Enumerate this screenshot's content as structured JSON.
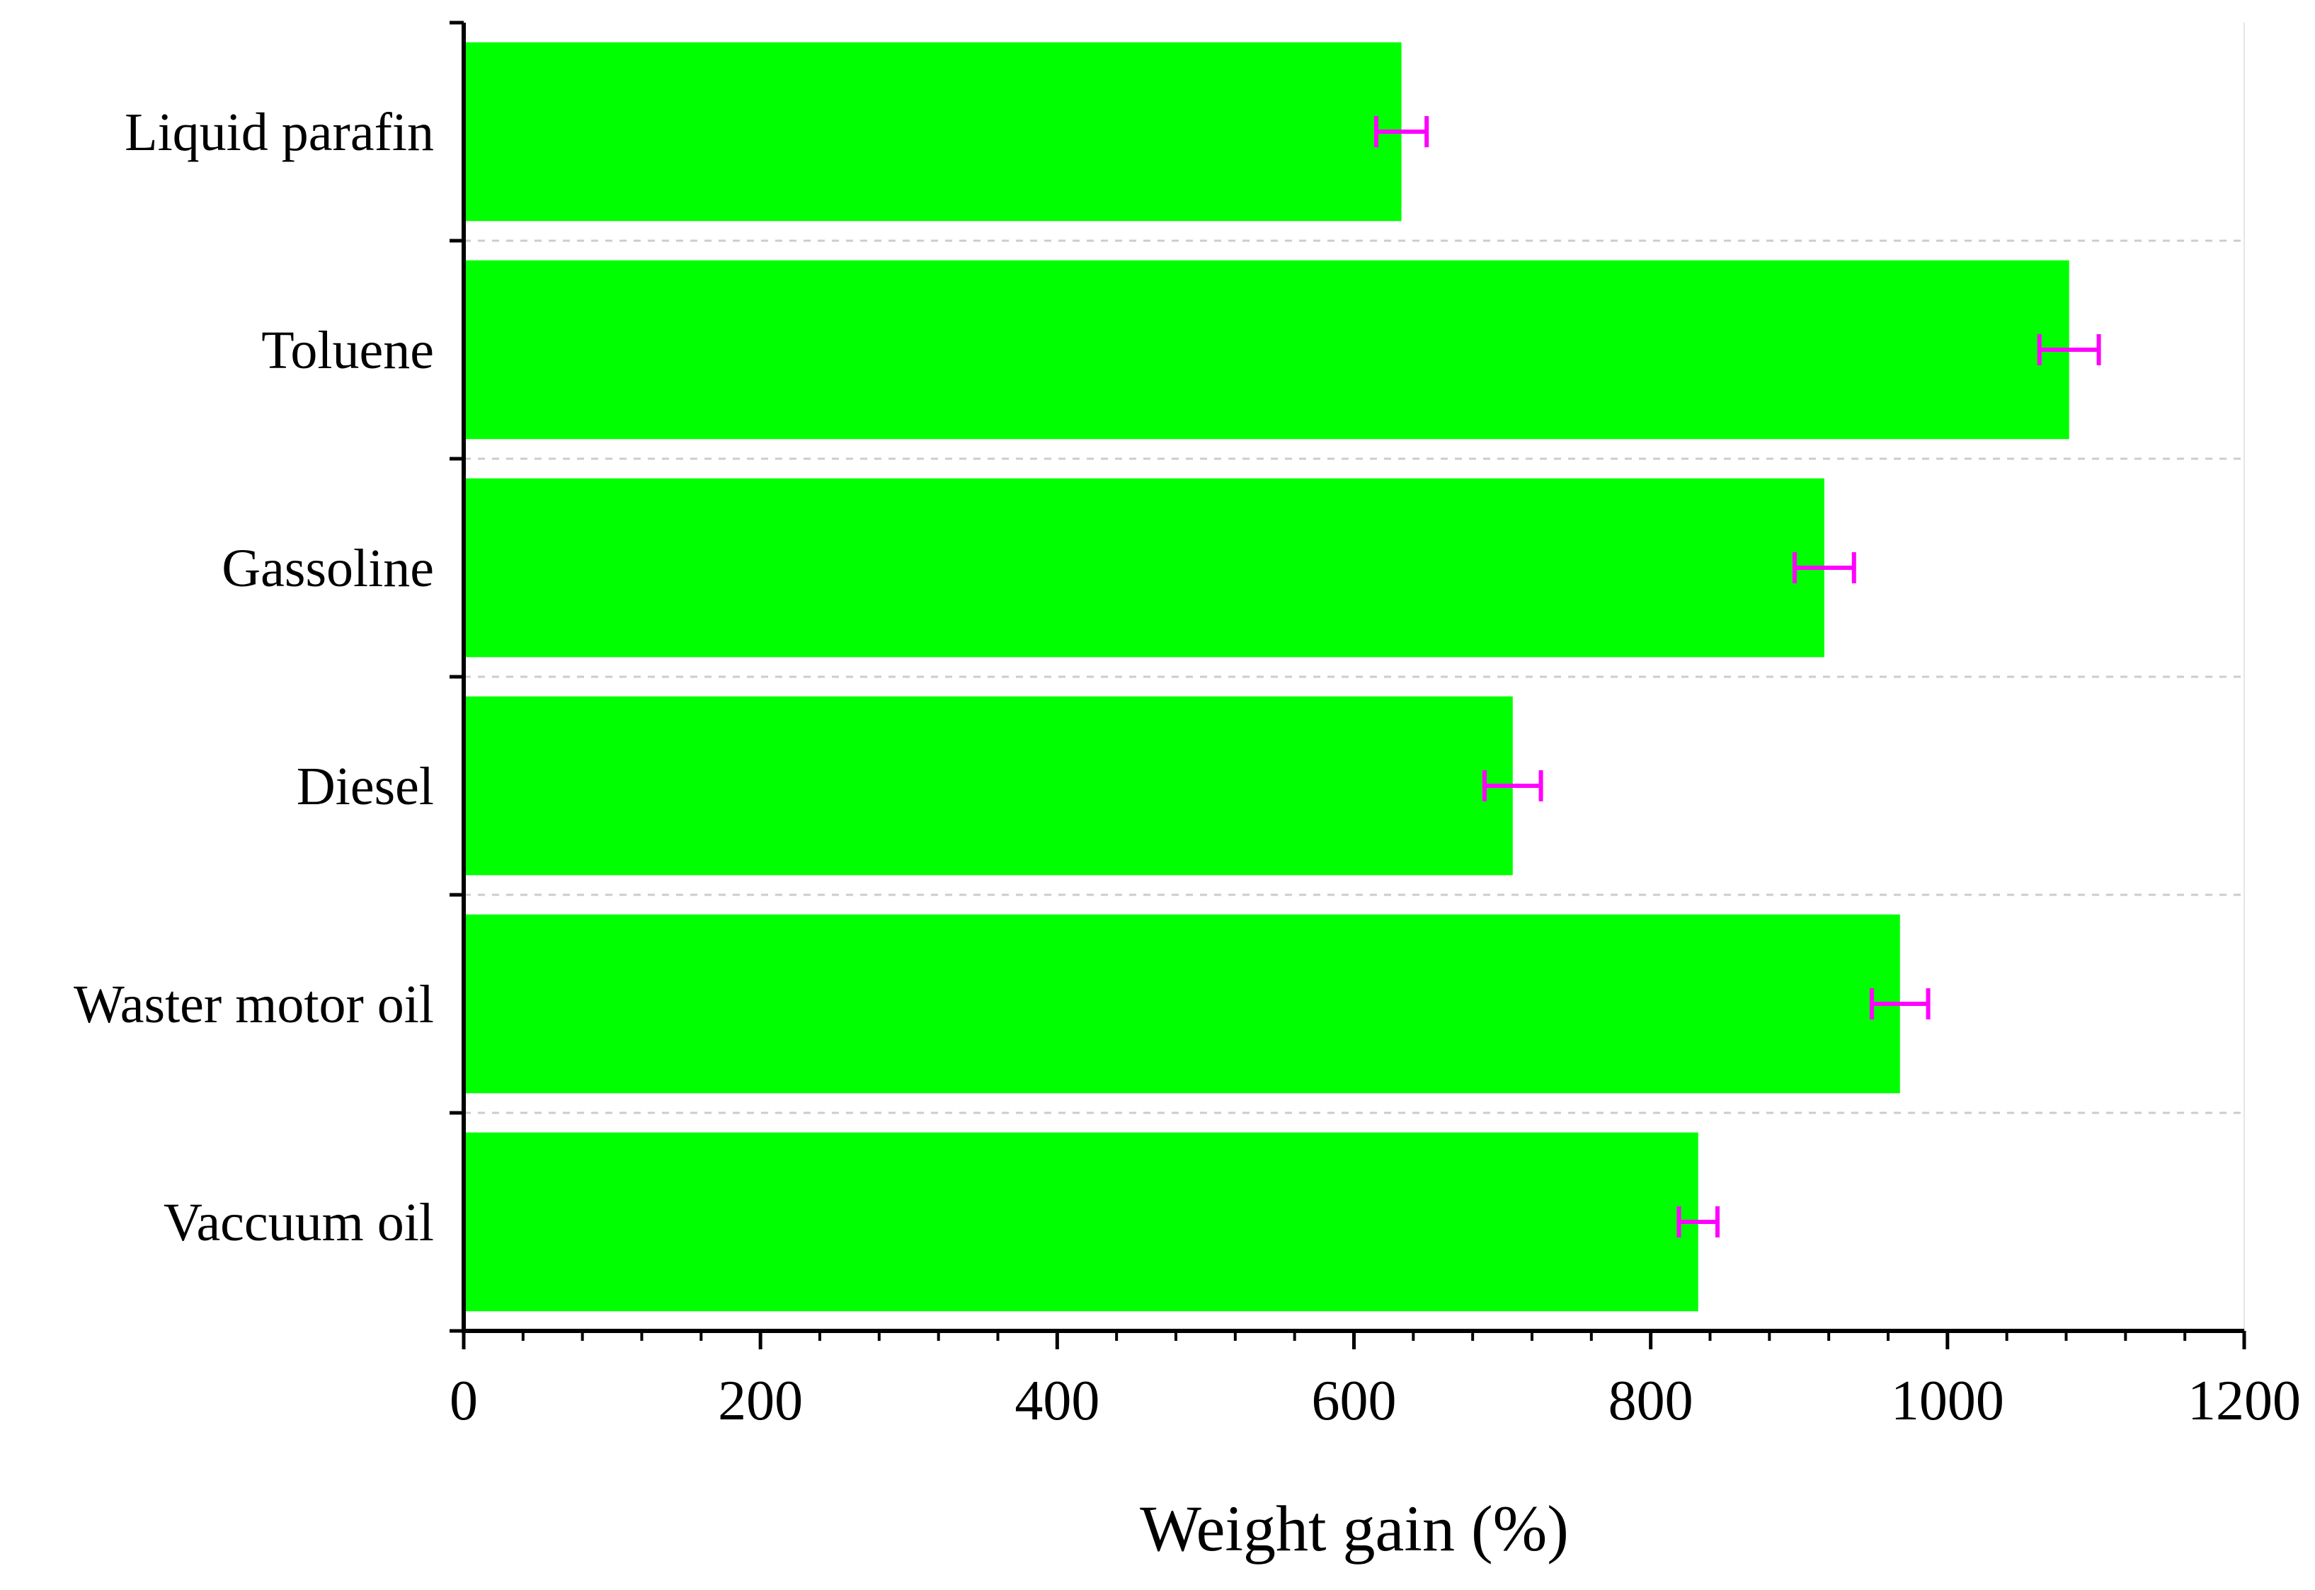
{
  "chart_data": {
    "type": "bar",
    "orientation": "horizontal",
    "categories": [
      "Liquid parafin",
      "Toluene",
      "Gassoline",
      "Diesel",
      "Waster motor oil",
      "Vaccuum oil"
    ],
    "values": [
      632,
      1082,
      917,
      707,
      968,
      832
    ],
    "errors": [
      17,
      20,
      20,
      19,
      19,
      13
    ],
    "xlabel": "Weight gain (%)",
    "ylabel": "",
    "xlim": [
      0,
      1200
    ],
    "xticks": [
      "0",
      "200",
      "400",
      "600",
      "800",
      "1000",
      "1200"
    ],
    "grid": "horizontal-dashed-between-categories",
    "colors": {
      "bar": "#00ff00",
      "error": "#ff00ff",
      "grid": "#cccccc",
      "axis": "#000000"
    }
  }
}
